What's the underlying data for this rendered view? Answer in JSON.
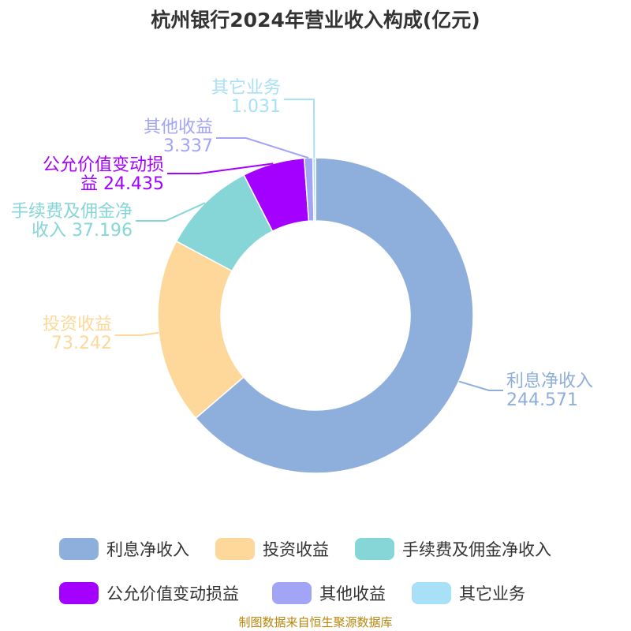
{
  "title": "杭州银行2024年营业收入构成(亿元)",
  "source": "制图数据来自恒生聚源数据库",
  "chart_data": {
    "type": "pie",
    "donut": true,
    "title": "杭州银行2024年营业收入构成(亿元)",
    "legend_position": "bottom",
    "slices": [
      {
        "name": "利息净收入",
        "value": 244.571,
        "value_label": "244.571",
        "color": "#8eaedb",
        "label_lines": [
          "利息净收入",
          "244.571"
        ]
      },
      {
        "name": "投资收益",
        "value": 73.242,
        "value_label": "73.242",
        "color": "#fdd89a",
        "label_lines": [
          "投资收益",
          "73.242"
        ]
      },
      {
        "name": "手续费及佣金净收入",
        "value": 37.196,
        "value_label": "37.196",
        "color": "#86d6d8",
        "label_lines": [
          "手续费及佣金净",
          "收入 37.196"
        ]
      },
      {
        "name": "公允价值变动损益",
        "value": 24.435,
        "value_label": "24.435",
        "color": "#a400ff",
        "label_lines": [
          "公允价值变动损",
          "益 24.435"
        ]
      },
      {
        "name": "其他收益",
        "value": 3.337,
        "value_label": "3.337",
        "color": "#a2a5f5",
        "label_lines": [
          "其他收益",
          "3.337"
        ]
      },
      {
        "name": "其它业务",
        "value": 1.031,
        "value_label": "1.031",
        "color": "#a8e0f8",
        "label_lines": [
          "其它业务",
          "1.031"
        ]
      }
    ]
  }
}
